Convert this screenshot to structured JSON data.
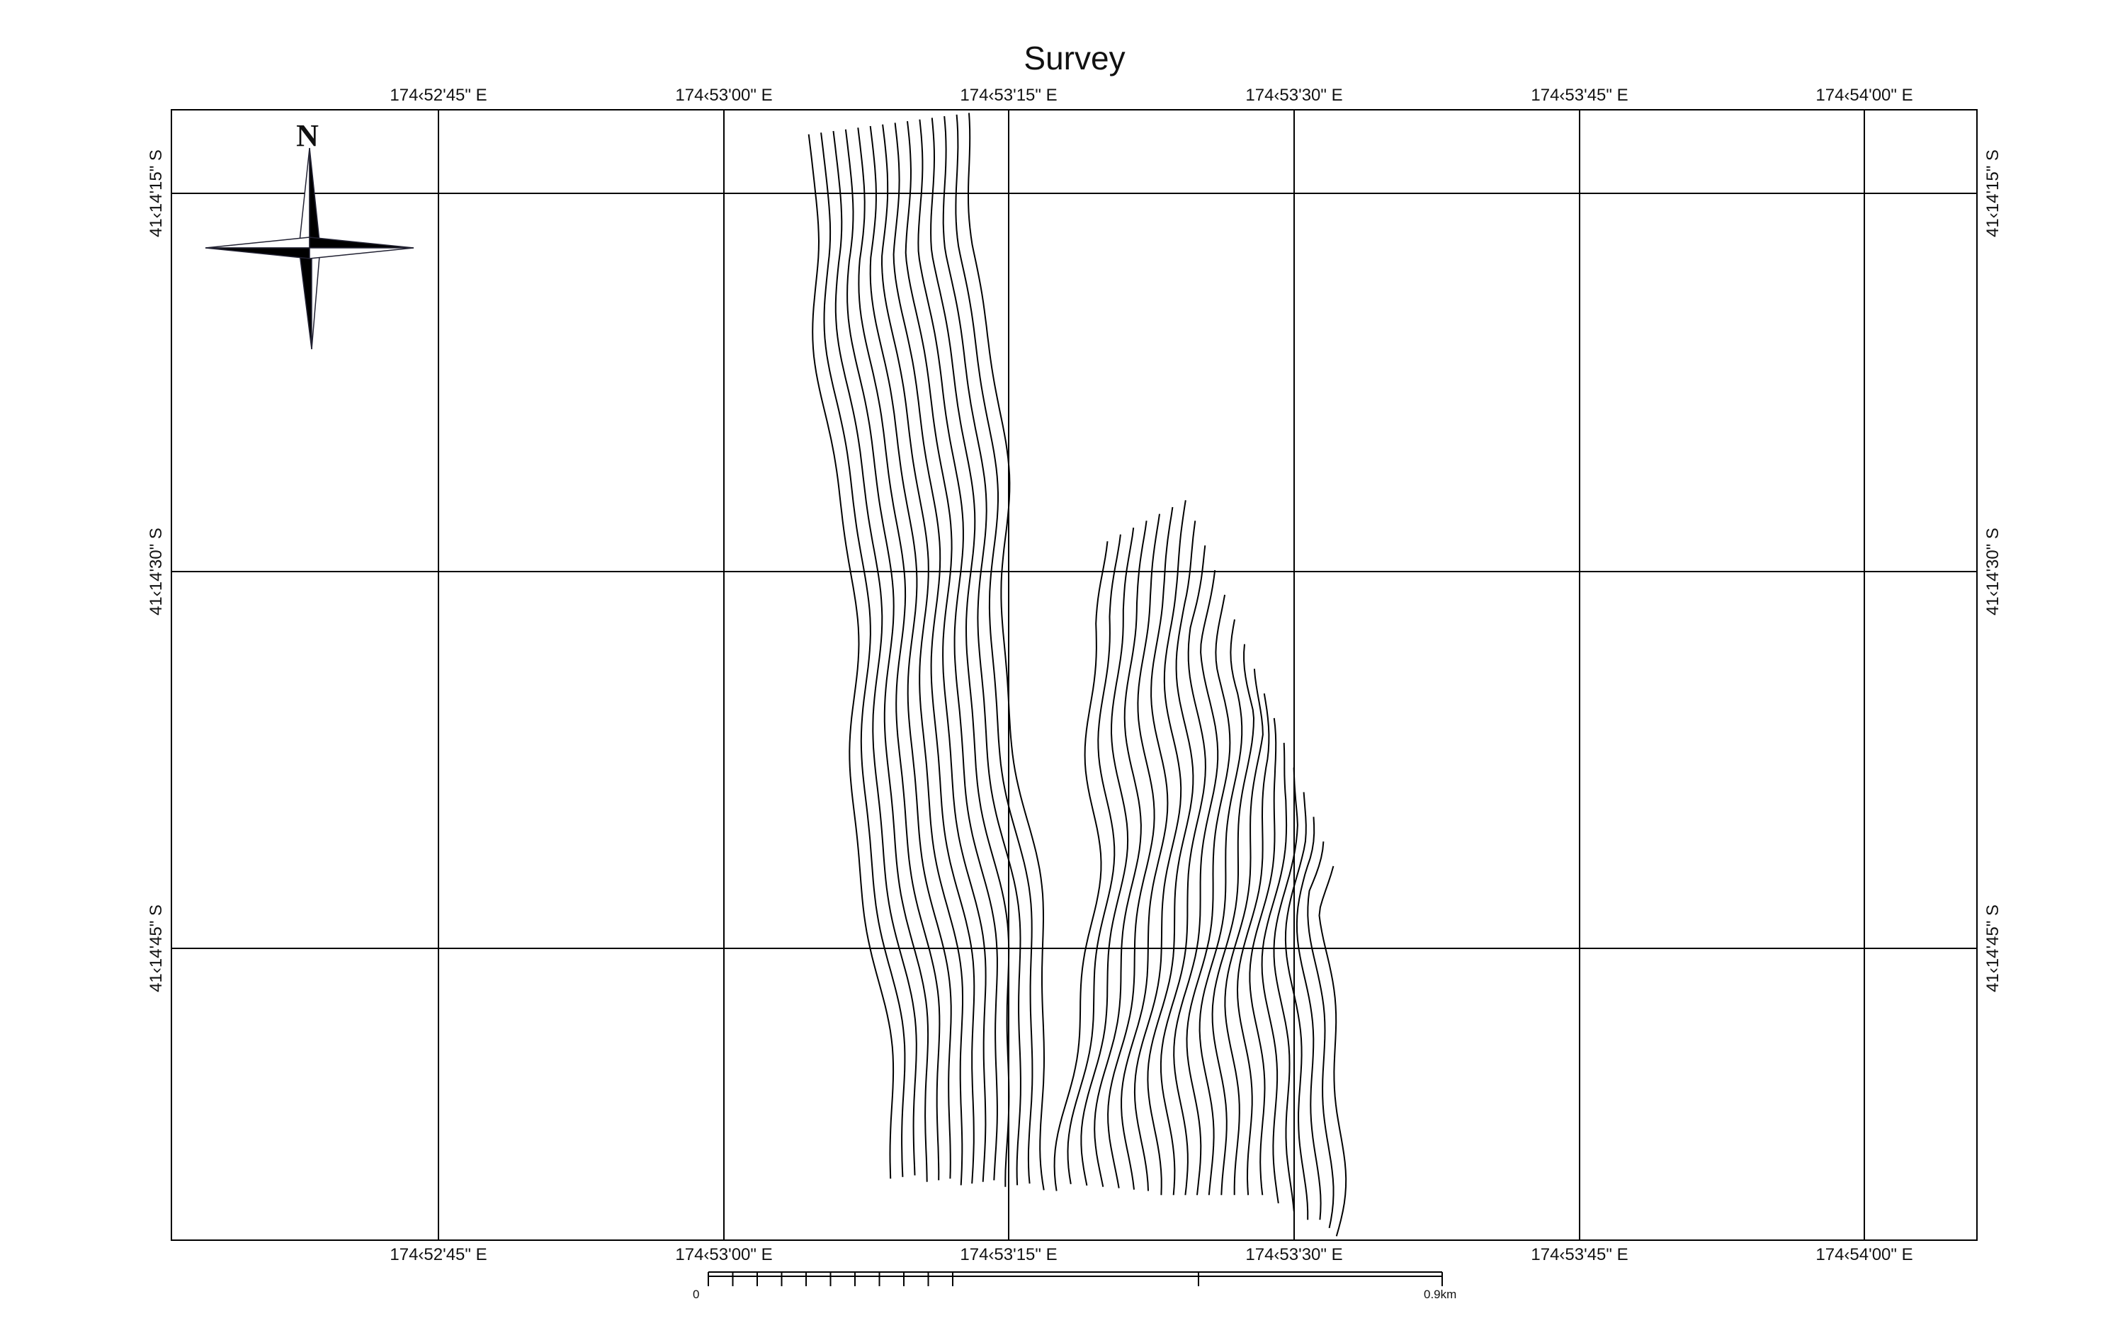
{
  "title": "Survey",
  "longitude_labels": [
    "174‹52'45\" E",
    "174‹53'00\" E",
    "174‹53'15\" E",
    "174‹53'30\" E",
    "174‹53'45\" E",
    "174‹54'00\" E"
  ],
  "latitude_labels": [
    "41‹14'15\" S",
    "41‹14'30\" S",
    "41‹14'45\" S"
  ],
  "north_label": "N",
  "scale_bar": {
    "start_label": "0",
    "end_label": "0.9km"
  }
}
